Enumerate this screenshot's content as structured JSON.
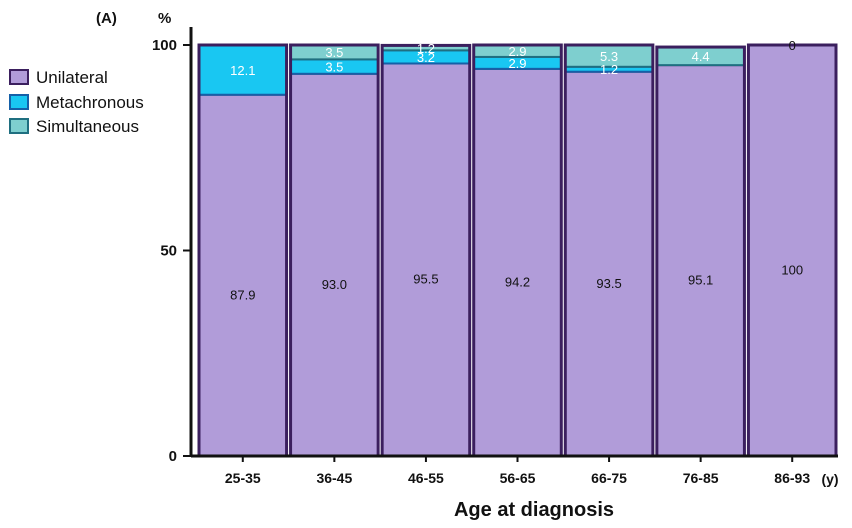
{
  "panel_label": "(A)",
  "y_unit": "%",
  "x_unit": "(y)",
  "colors": {
    "unilateral": "#b19cd9",
    "metachronous": "#19c7f2",
    "simultaneous": "#7ecfcf",
    "outline": "#3b1f5e",
    "seg_outline": "#2a8fa6"
  },
  "chart_data": {
    "type": "bar",
    "stacked": true,
    "title": "",
    "xlabel": "Age at diagnosis",
    "ylabel": "%",
    "ylim": [
      0,
      100
    ],
    "yticks": [
      "0",
      "50",
      "100"
    ],
    "categories": [
      "25-35",
      "36-45",
      "46-55",
      "56-65",
      "66-75",
      "76-85",
      "86-93"
    ],
    "legend_position": "top-left",
    "series": [
      {
        "name": "Unilateral",
        "values": [
          87.9,
          93.0,
          95.5,
          94.2,
          93.5,
          95.1,
          100
        ],
        "labels": [
          "87.9",
          "93.0",
          "95.5",
          "94.2",
          "93.5",
          "95.1",
          "100"
        ]
      },
      {
        "name": "Metachronous",
        "values": [
          12.1,
          3.5,
          3.2,
          2.9,
          1.2,
          0,
          0
        ],
        "labels": [
          "12.1",
          "3.5",
          "3.2",
          "2.9",
          "1.2",
          "",
          ""
        ]
      },
      {
        "name": "Simultaneous",
        "values": [
          0,
          3.5,
          1.2,
          2.9,
          5.3,
          4.4,
          0
        ],
        "labels": [
          "",
          "3.5",
          "1.2",
          "2.9",
          "5.3",
          "4.4",
          "0"
        ]
      }
    ]
  }
}
